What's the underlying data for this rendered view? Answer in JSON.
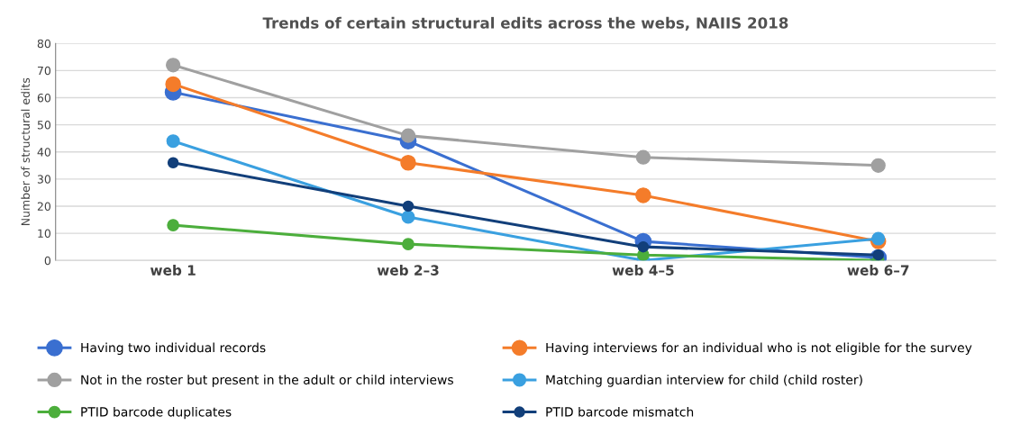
{
  "chart_data": {
    "type": "line",
    "title": "Trends of certain structural edits across the webs, NAIIS 2018",
    "ylabel": "Number of structural edits",
    "categories": [
      "web 1",
      "web 2–3",
      "web 4–5",
      "web 6–7"
    ],
    "series": [
      {
        "name": "Having two individual records",
        "color": "#3a6fd0",
        "values": [
          62,
          44,
          7,
          1
        ]
      },
      {
        "name": "Having interviews for an individual who is not eligible for the survey",
        "color": "#f47c2a",
        "values": [
          65,
          36,
          24,
          7
        ]
      },
      {
        "name": "Not in the roster but present in the adult or child interviews",
        "color": "#a0a0a0",
        "values": [
          72,
          46,
          38,
          35
        ]
      },
      {
        "name": "Matching guardian interview for child (child roster)",
        "color": "#3aa0e0",
        "values": [
          44,
          16,
          0,
          8
        ]
      },
      {
        "name": "PTID barcode duplicates",
        "color": "#4cae3c",
        "values": [
          13,
          6,
          2,
          0
        ]
      },
      {
        "name": "PTID barcode mismatch",
        "color": "#123f7a",
        "values": [
          36,
          20,
          5,
          2
        ]
      }
    ],
    "ylim": [
      0,
      80
    ],
    "yticks": [
      0,
      10,
      20,
      30,
      40,
      50,
      60,
      70,
      80
    ],
    "grid": "y",
    "legend": "bottom",
    "marker": "circle",
    "line_style": "solid"
  }
}
